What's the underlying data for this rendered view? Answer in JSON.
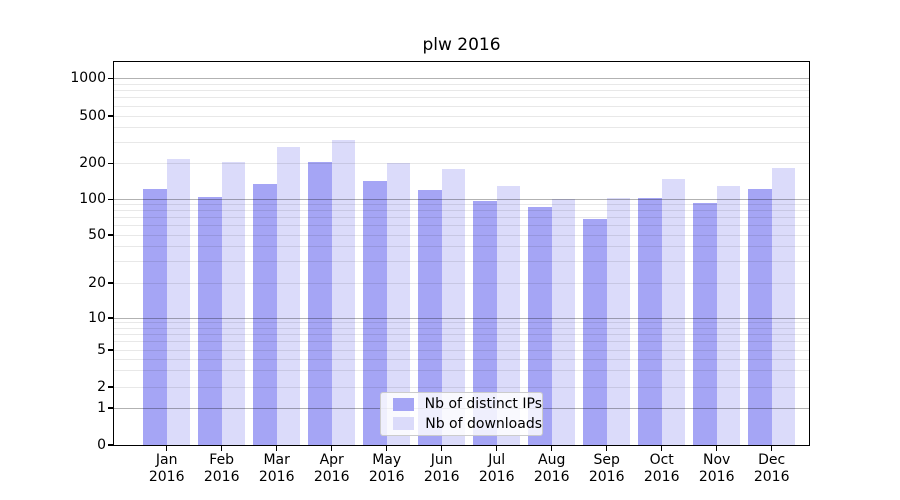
{
  "chart_data": {
    "type": "bar",
    "title": "plw 2016",
    "categories": [
      "Jan 2016",
      "Feb 2016",
      "Mar 2016",
      "Apr 2016",
      "May 2016",
      "Jun 2016",
      "Jul 2016",
      "Aug 2016",
      "Sep 2016",
      "Oct 2016",
      "Nov 2016",
      "Dec 2016"
    ],
    "series": [
      {
        "name": "Nb of distinct IPs",
        "color": "#a5a5f5",
        "values": [
          123,
          104,
          134,
          206,
          142,
          120,
          96,
          86,
          68,
          103,
          94,
          123
        ]
      },
      {
        "name": "Nb of downloads",
        "color": "#dbdbfa",
        "values": [
          217,
          205,
          272,
          314,
          203,
          180,
          129,
          100,
          102,
          147,
          129,
          182
        ]
      }
    ],
    "xlabel": "",
    "ylabel": "",
    "yscale": "log-like",
    "yticks": [
      0,
      1,
      2,
      5,
      10,
      20,
      50,
      100,
      200,
      500,
      1000
    ],
    "minor_gridlines": [
      2,
      3,
      4,
      5,
      6,
      7,
      8,
      9,
      20,
      30,
      40,
      50,
      60,
      70,
      80,
      90,
      200,
      300,
      400,
      500,
      600,
      700,
      800,
      900
    ],
    "major_gridlines": [
      1,
      10,
      100,
      1000
    ],
    "ylim": [
      0,
      1400
    ],
    "grid": "horizontal major+minor",
    "legend_position": "bottom-center"
  }
}
